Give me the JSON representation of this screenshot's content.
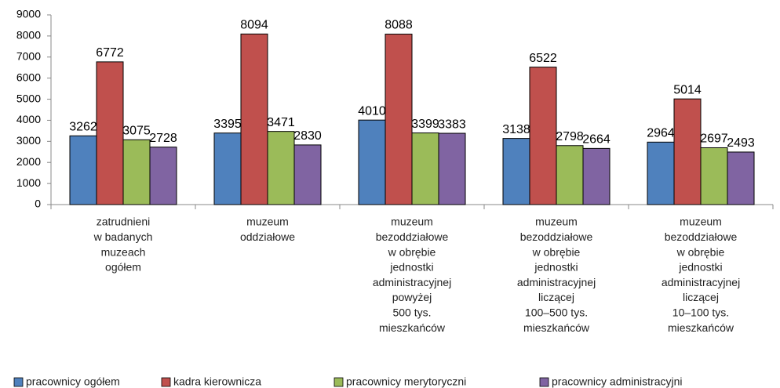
{
  "chart_data": {
    "type": "bar",
    "categories": [
      [
        "zatrudnieni",
        "w badanych",
        "muzeach",
        "ogółem"
      ],
      [
        "muzeum",
        "oddziałowe"
      ],
      [
        "muzeum",
        "bezoddziałowe",
        "w obrębie",
        "jednostki",
        "administracyjnej",
        "powyżej",
        "500 tys.",
        "mieszkańców"
      ],
      [
        "muzeum",
        "bezoddziałowe",
        "w obrębie",
        "jednostki",
        "administracyjnej",
        "liczącej",
        "100–500 tys.",
        "mieszkańców"
      ],
      [
        "muzeum",
        "bezoddziałowe",
        "w obrębie",
        "jednostki",
        "administracyjnej",
        "liczącej",
        "10–100 tys.",
        "mieszkańców"
      ]
    ],
    "series": [
      {
        "name": "pracownicy ogółem",
        "color": "#4f81bd",
        "values": [
          3262,
          3395,
          4010,
          3138,
          2964
        ]
      },
      {
        "name": "kadra kierownicza",
        "color": "#c0504d",
        "values": [
          6772,
          8094,
          8088,
          6522,
          5014
        ]
      },
      {
        "name": "pracownicy merytoryczni",
        "color": "#9bbb59",
        "values": [
          3075,
          3471,
          3399,
          2798,
          2697
        ]
      },
      {
        "name": "pracownicy administracyjni",
        "color": "#8064a2",
        "values": [
          2728,
          2830,
          3383,
          2664,
          2493
        ]
      }
    ],
    "ylim": [
      0,
      9000
    ],
    "yticks": [
      0,
      1000,
      2000,
      3000,
      4000,
      5000,
      6000,
      7000,
      8000,
      9000
    ],
    "grid": false,
    "legend": "bottom"
  }
}
